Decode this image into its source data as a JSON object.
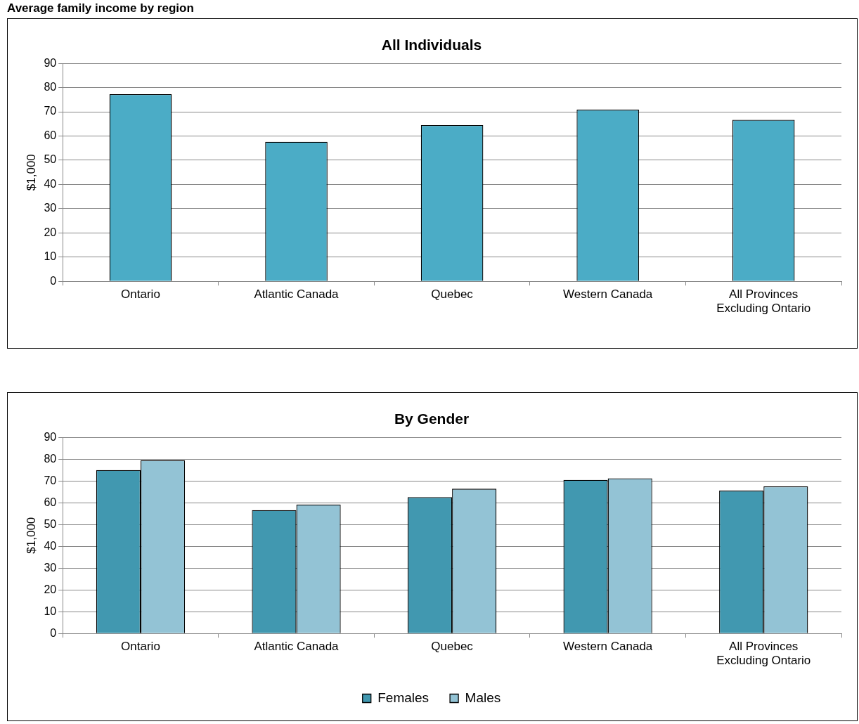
{
  "chart_data": [
    {
      "type": "bar",
      "title": "All Individuals",
      "ylabel": "$1,000",
      "annotations": [
        "Average family income by region"
      ],
      "categories": [
        "Ontario",
        "Atlantic Canada",
        "Quebec",
        "Western Canada",
        "All Provinces Excluding Ontario"
      ],
      "values": [
        77.3,
        57.6,
        64.5,
        70.9,
        66.7
      ],
      "color": "#4bacc6",
      "ylim": [
        0,
        90
      ],
      "yticks": [
        0,
        10,
        20,
        30,
        40,
        50,
        60,
        70,
        80,
        90
      ],
      "grid": "y"
    },
    {
      "type": "bar",
      "title": "By Gender",
      "ylabel": "$1,000",
      "categories": [
        "Ontario",
        "Atlantic Canada",
        "Quebec",
        "Western Canada",
        "All Provinces Excluding Ontario"
      ],
      "series": [
        {
          "name": "Females",
          "color": "#4198b0",
          "values": [
            75.0,
            56.6,
            62.6,
            70.5,
            65.6
          ]
        },
        {
          "name": "Males",
          "color": "#93c3d5",
          "values": [
            79.5,
            59.2,
            66.4,
            71.2,
            67.5
          ]
        }
      ],
      "ylim": [
        0,
        90
      ],
      "yticks": [
        0,
        10,
        20,
        30,
        40,
        50,
        60,
        70,
        80,
        90
      ],
      "grid": "y",
      "legend": "bottom"
    }
  ]
}
